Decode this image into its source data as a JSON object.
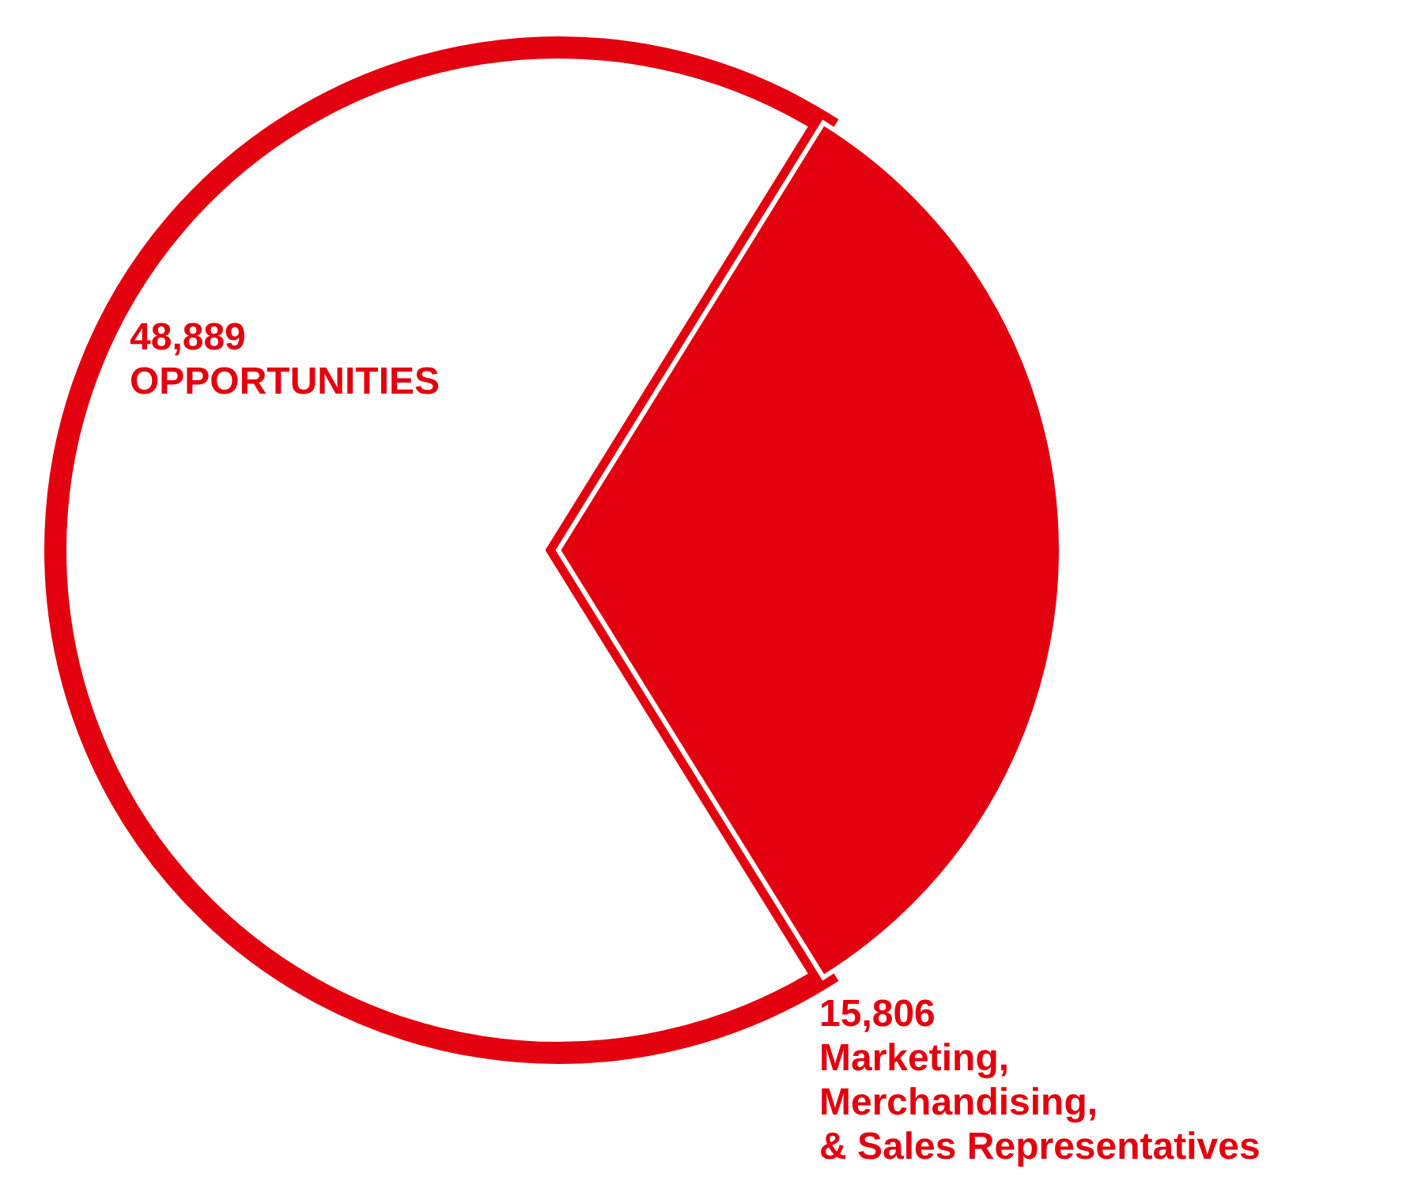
{
  "chart_data": {
    "type": "pie",
    "categories": [
      null,
      "Marketing, Merchandising, & Sales Representatives"
    ],
    "values": [
      33083,
      15806
    ],
    "value_labels": [
      null,
      "15,806"
    ],
    "colors": [
      "#ffffff",
      "#e3000f"
    ],
    "annotations": [
      "48,889 OPPORTUNITIES"
    ]
  }
}
